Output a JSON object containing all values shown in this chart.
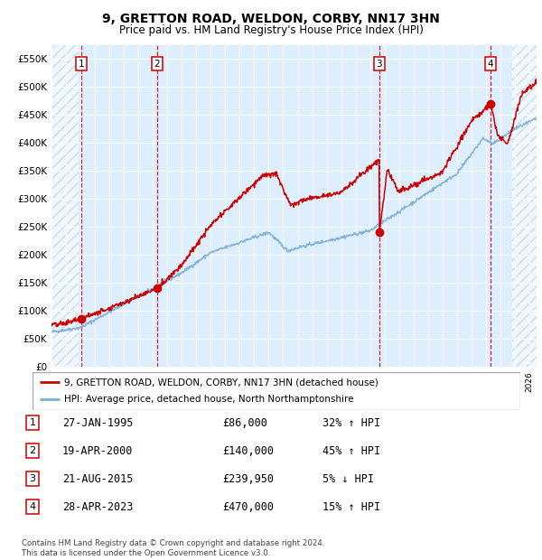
{
  "title": "9, GRETTON ROAD, WELDON, CORBY, NN17 3HN",
  "subtitle": "Price paid vs. HM Land Registry's House Price Index (HPI)",
  "ylim": [
    0,
    575000
  ],
  "yticks": [
    0,
    50000,
    100000,
    150000,
    200000,
    250000,
    300000,
    350000,
    400000,
    450000,
    500000,
    550000
  ],
  "ytick_labels": [
    "£0",
    "£50K",
    "£100K",
    "£150K",
    "£200K",
    "£250K",
    "£300K",
    "£350K",
    "£400K",
    "£450K",
    "£500K",
    "£550K"
  ],
  "xlim_start": 1993.0,
  "xlim_end": 2026.5,
  "sale_color": "#cc0000",
  "hpi_color": "#7bafd4",
  "plot_bg_color": "#ddeeff",
  "hatch_color": "#c0d0e8",
  "dashed_color": "#cc0000",
  "transactions": [
    {
      "num": 1,
      "date_label": "27-JAN-1995",
      "date_x": 1995.07,
      "price": 86000,
      "pct": "32%",
      "direction": "↑"
    },
    {
      "num": 2,
      "date_label": "19-APR-2000",
      "date_x": 2000.3,
      "price": 140000,
      "pct": "45%",
      "direction": "↑"
    },
    {
      "num": 3,
      "date_label": "21-AUG-2015",
      "date_x": 2015.64,
      "price": 239950,
      "pct": "5%",
      "direction": "↓"
    },
    {
      "num": 4,
      "date_label": "28-APR-2023",
      "date_x": 2023.33,
      "price": 470000,
      "pct": "15%",
      "direction": "↑"
    }
  ],
  "hatch_left_end": 1994.9,
  "hatch_right_start": 2024.8,
  "legend_label_red": "9, GRETTON ROAD, WELDON, CORBY, NN17 3HN (detached house)",
  "legend_label_blue": "HPI: Average price, detached house, North Northamptonshire",
  "footer": "Contains HM Land Registry data © Crown copyright and database right 2024.\nThis data is licensed under the Open Government Licence v3.0."
}
